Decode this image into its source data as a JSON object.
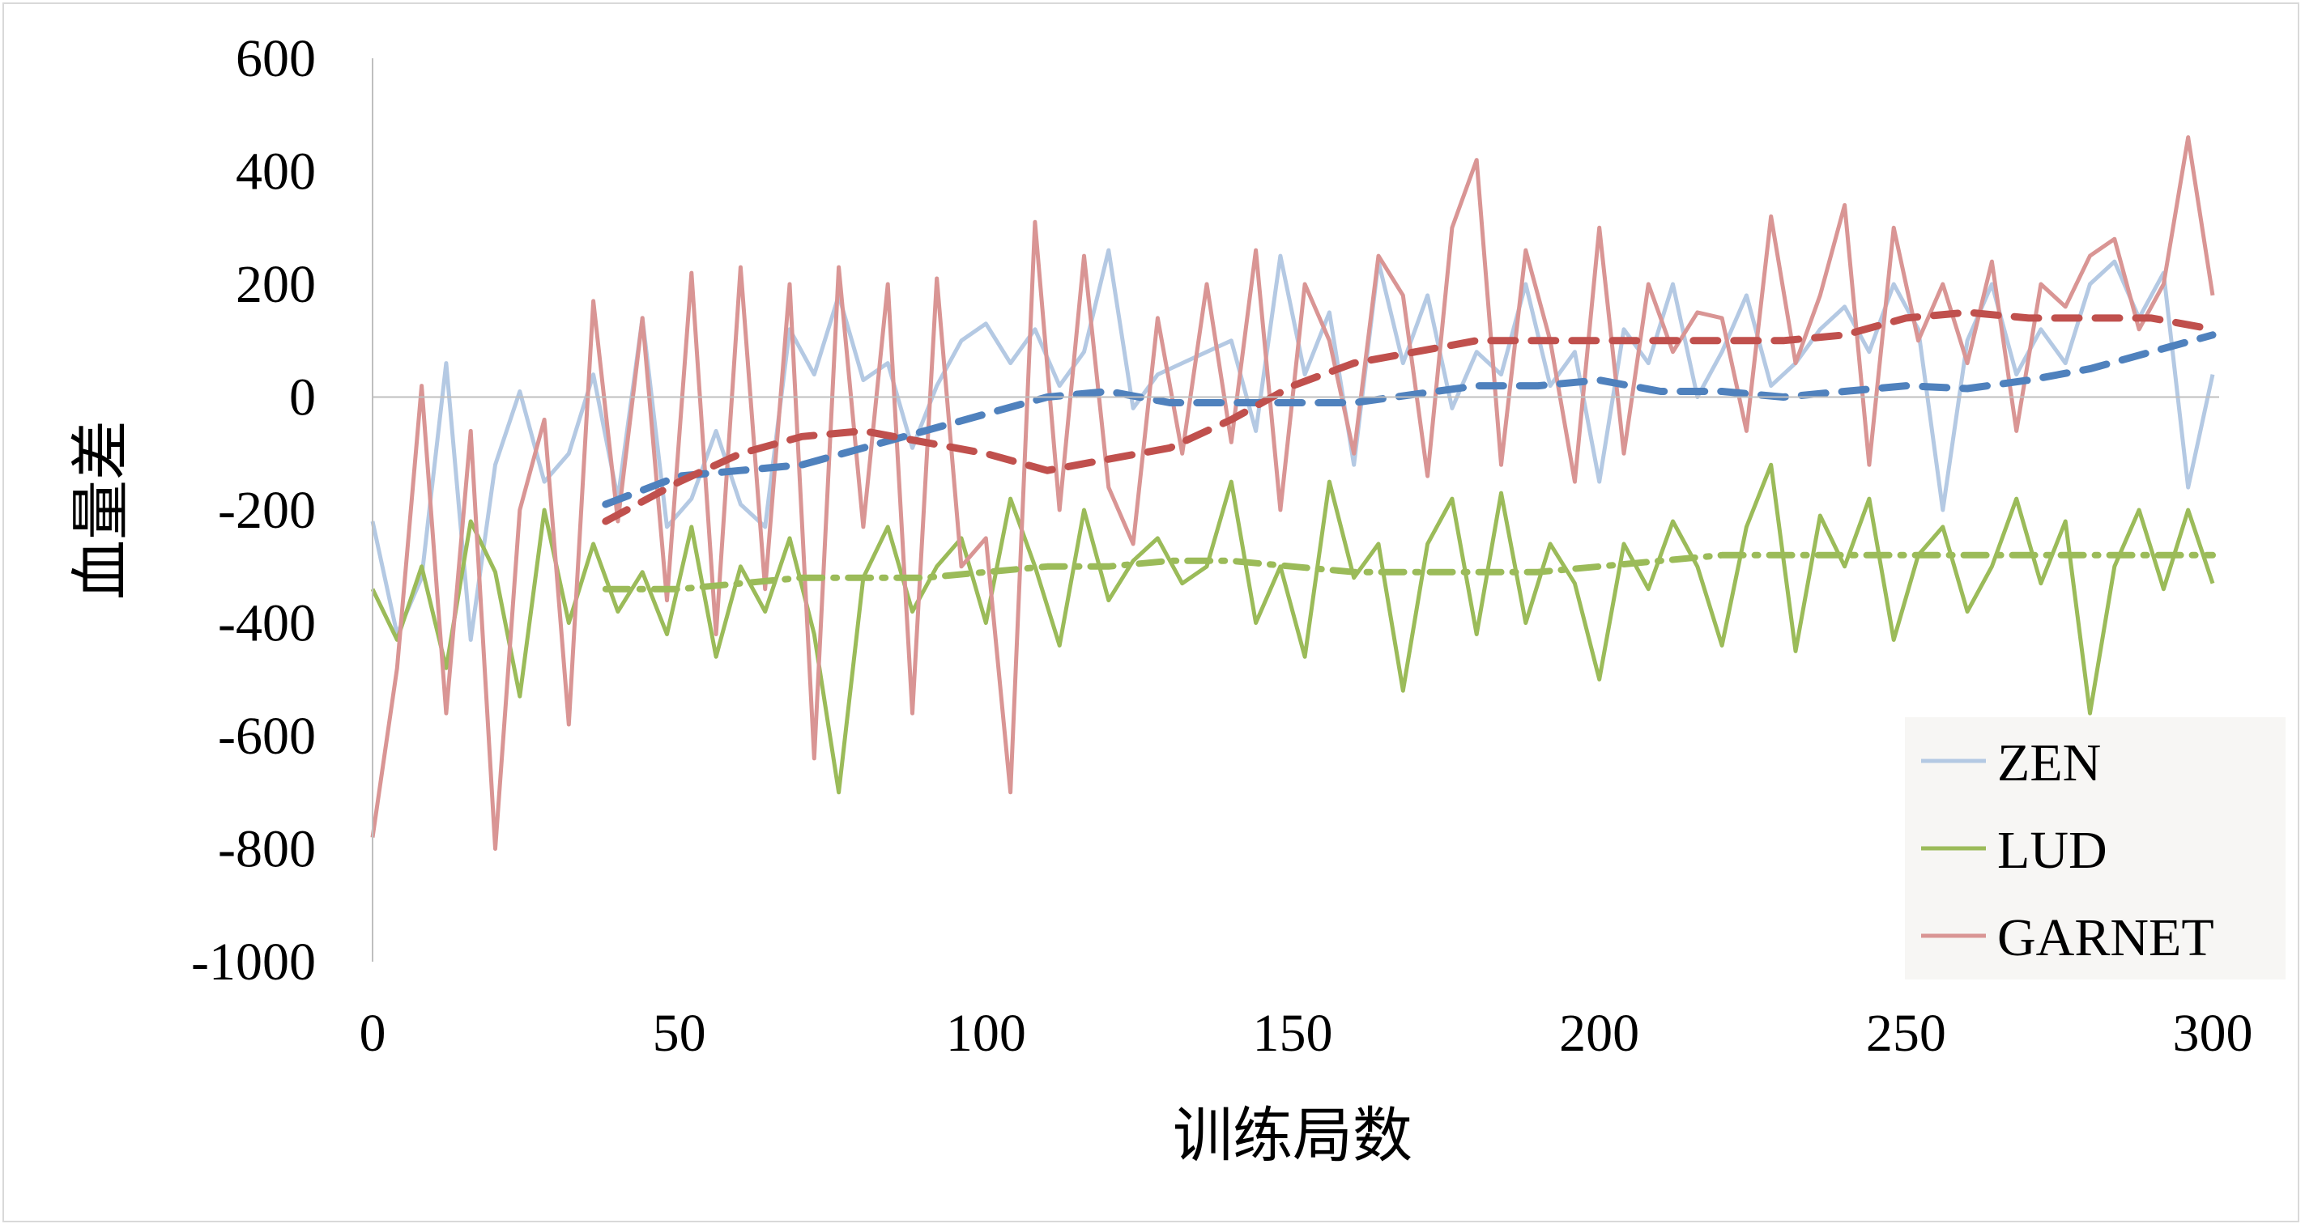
{
  "chart_data": {
    "type": "line",
    "xlabel": "训练局数",
    "ylabel": "血量差",
    "xlim": [
      0,
      300
    ],
    "ylim": [
      -1000,
      600
    ],
    "x_ticks": [
      "0",
      "50",
      "100",
      "150",
      "200",
      "250",
      "300"
    ],
    "y_ticks": [
      "600",
      "400",
      "200",
      "0",
      "-200",
      "-400",
      "-600",
      "-800",
      "-1000"
    ],
    "grid": false,
    "zero_line": true,
    "legend_position": "bottom-right",
    "series": [
      {
        "name": "ZEN",
        "color": "#b4c9e3",
        "style": "solid",
        "x": [
          0,
          4,
          8,
          12,
          16,
          20,
          24,
          28,
          32,
          36,
          40,
          44,
          48,
          52,
          56,
          60,
          64,
          68,
          72,
          76,
          80,
          84,
          88,
          92,
          96,
          100,
          104,
          108,
          112,
          116,
          120,
          124,
          128,
          132,
          136,
          140,
          144,
          148,
          152,
          156,
          160,
          164,
          168,
          172,
          176,
          180,
          184,
          188,
          192,
          196,
          200,
          204,
          208,
          212,
          216,
          220,
          224,
          228,
          232,
          236,
          240,
          244,
          248,
          252,
          256,
          260,
          264,
          268,
          272,
          276,
          280,
          284,
          288,
          292,
          296,
          300
        ],
        "values": [
          -220,
          -420,
          -320,
          60,
          -430,
          -120,
          10,
          -150,
          -100,
          40,
          -180,
          140,
          -230,
          -180,
          -60,
          -190,
          -230,
          120,
          40,
          180,
          30,
          60,
          -90,
          20,
          100,
          130,
          60,
          120,
          20,
          80,
          260,
          -20,
          40,
          60,
          80,
          100,
          -60,
          250,
          40,
          150,
          -120,
          240,
          60,
          180,
          -20,
          80,
          40,
          200,
          20,
          80,
          -150,
          120,
          60,
          200,
          0,
          80,
          180,
          20,
          60,
          120,
          160,
          80,
          200,
          120,
          -200,
          100,
          200,
          40,
          120,
          60,
          200,
          240,
          140,
          220,
          -160,
          40
        ]
      },
      {
        "name": "LUD",
        "color": "#9bbb59",
        "style": "solid",
        "x": [
          0,
          4,
          8,
          12,
          16,
          20,
          24,
          28,
          32,
          36,
          40,
          44,
          48,
          52,
          56,
          60,
          64,
          68,
          72,
          76,
          80,
          84,
          88,
          92,
          96,
          100,
          104,
          108,
          112,
          116,
          120,
          124,
          128,
          132,
          136,
          140,
          144,
          148,
          152,
          156,
          160,
          164,
          168,
          172,
          176,
          180,
          184,
          188,
          192,
          196,
          200,
          204,
          208,
          212,
          216,
          220,
          224,
          228,
          232,
          236,
          240,
          244,
          248,
          252,
          256,
          260,
          264,
          268,
          272,
          276,
          280,
          284,
          288,
          292,
          296,
          300
        ],
        "values": [
          -340,
          -430,
          -300,
          -480,
          -220,
          -310,
          -530,
          -200,
          -400,
          -260,
          -380,
          -310,
          -420,
          -230,
          -460,
          -300,
          -380,
          -250,
          -420,
          -700,
          -320,
          -230,
          -380,
          -300,
          -250,
          -400,
          -180,
          -300,
          -440,
          -200,
          -360,
          -290,
          -250,
          -330,
          -300,
          -150,
          -400,
          -300,
          -460,
          -150,
          -320,
          -260,
          -520,
          -260,
          -180,
          -420,
          -170,
          -400,
          -260,
          -330,
          -500,
          -260,
          -340,
          -220,
          -300,
          -440,
          -230,
          -120,
          -450,
          -210,
          -300,
          -180,
          -430,
          -280,
          -230,
          -380,
          -300,
          -180,
          -330,
          -220,
          -560,
          -300,
          -200,
          -340,
          -200,
          -330
        ]
      },
      {
        "name": "GARNET",
        "color": "#d99594",
        "style": "solid",
        "x": [
          0,
          4,
          8,
          12,
          16,
          20,
          24,
          28,
          32,
          36,
          40,
          44,
          48,
          52,
          56,
          60,
          64,
          68,
          72,
          76,
          80,
          84,
          88,
          92,
          96,
          100,
          104,
          108,
          112,
          116,
          120,
          124,
          128,
          132,
          136,
          140,
          144,
          148,
          152,
          156,
          160,
          164,
          168,
          172,
          176,
          180,
          184,
          188,
          192,
          196,
          200,
          204,
          208,
          212,
          216,
          220,
          224,
          228,
          232,
          236,
          240,
          244,
          248,
          252,
          256,
          260,
          264,
          268,
          272,
          276,
          280,
          284,
          288,
          292,
          296,
          300
        ],
        "values": [
          -780,
          -480,
          20,
          -560,
          -60,
          -800,
          -200,
          -40,
          -580,
          170,
          -220,
          140,
          -360,
          220,
          -420,
          230,
          -340,
          200,
          -640,
          230,
          -230,
          200,
          -560,
          210,
          -300,
          -250,
          -700,
          310,
          -200,
          250,
          -160,
          -260,
          140,
          -100,
          200,
          -80,
          260,
          -200,
          200,
          100,
          -100,
          250,
          180,
          -140,
          300,
          420,
          -120,
          260,
          100,
          -150,
          300,
          -100,
          200,
          80,
          150,
          140,
          -60,
          320,
          60,
          180,
          340,
          -120,
          300,
          100,
          200,
          60,
          240,
          -60,
          200,
          160,
          250,
          280,
          120,
          200,
          460,
          180
        ]
      },
      {
        "name": "",
        "color": "#4f81bd",
        "style": "dashed",
        "x": [
          38,
          50,
          60,
          70,
          80,
          90,
          100,
          110,
          120,
          130,
          140,
          150,
          160,
          170,
          180,
          190,
          200,
          210,
          220,
          230,
          240,
          250,
          260,
          270,
          280,
          290,
          300
        ],
        "values": [
          -190,
          -140,
          -130,
          -120,
          -90,
          -60,
          -30,
          0,
          10,
          -10,
          -10,
          -10,
          -10,
          5,
          20,
          20,
          30,
          10,
          10,
          0,
          10,
          20,
          15,
          30,
          50,
          80,
          110
        ]
      },
      {
        "name": "",
        "color": "#c0504d",
        "style": "dashed",
        "x": [
          38,
          50,
          60,
          70,
          80,
          90,
          100,
          110,
          120,
          130,
          140,
          150,
          160,
          170,
          180,
          190,
          200,
          210,
          220,
          230,
          240,
          250,
          260,
          270,
          280,
          290,
          300
        ],
        "values": [
          -220,
          -150,
          -100,
          -70,
          -60,
          -80,
          -100,
          -130,
          -110,
          -90,
          -40,
          20,
          60,
          80,
          100,
          100,
          100,
          100,
          100,
          100,
          110,
          140,
          150,
          140,
          140,
          140,
          120
        ]
      },
      {
        "name": "",
        "color": "#9bbb59",
        "style": "dash-dot",
        "x": [
          38,
          50,
          60,
          70,
          80,
          90,
          100,
          110,
          120,
          130,
          140,
          150,
          160,
          170,
          180,
          190,
          200,
          210,
          220,
          230,
          240,
          250,
          260,
          270,
          280,
          290,
          300
        ],
        "values": [
          -340,
          -340,
          -330,
          -320,
          -320,
          -320,
          -310,
          -300,
          -300,
          -290,
          -290,
          -300,
          -310,
          -310,
          -310,
          -310,
          -300,
          -290,
          -280,
          -280,
          -280,
          -280,
          -280,
          -280,
          -280,
          -280,
          -280
        ]
      }
    ]
  }
}
